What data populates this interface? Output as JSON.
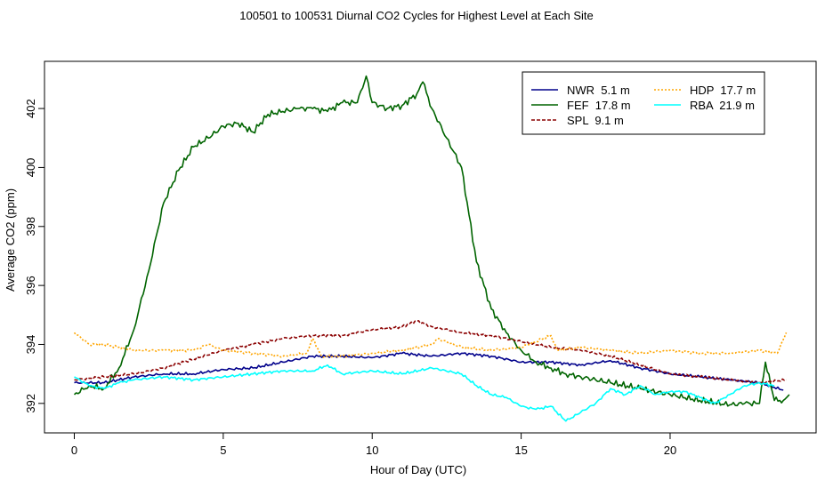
{
  "chart_data": {
    "type": "line",
    "title": "100501  to  100531 Diurnal CO2 Cycles for Highest Level at Each Site",
    "xlabel": "Hour of Day (UTC)",
    "ylabel": "Average CO2 (ppm)",
    "xlim": [
      -1,
      24.9
    ],
    "ylim": [
      391,
      403.6
    ],
    "x_ticks": [
      0,
      5,
      10,
      15,
      20
    ],
    "y_ticks": [
      392,
      394,
      396,
      398,
      400,
      402
    ],
    "grid": false,
    "legend_position": "top-right",
    "series": [
      {
        "name": "NWR  5.1 m",
        "color": "#00008B",
        "dash": "solid",
        "points": [
          [
            0,
            392.7
          ],
          [
            1,
            392.7
          ],
          [
            2,
            392.9
          ],
          [
            3,
            393.0
          ],
          [
            4,
            393.0
          ],
          [
            5,
            393.15
          ],
          [
            6,
            393.2
          ],
          [
            7,
            393.4
          ],
          [
            8,
            393.6
          ],
          [
            9,
            393.6
          ],
          [
            10,
            393.55
          ],
          [
            11,
            393.7
          ],
          [
            12,
            393.6
          ],
          [
            13,
            393.7
          ],
          [
            14,
            393.6
          ],
          [
            15,
            393.4
          ],
          [
            16,
            393.4
          ],
          [
            17,
            393.3
          ],
          [
            18,
            393.45
          ],
          [
            19,
            393.2
          ],
          [
            20,
            393.0
          ],
          [
            21,
            392.9
          ],
          [
            22,
            392.8
          ],
          [
            23,
            392.7
          ],
          [
            23.8,
            392.45
          ]
        ]
      },
      {
        "name": "FEF  17.8 m",
        "color": "#006400",
        "dash": "solid",
        "points": [
          [
            0,
            392.3
          ],
          [
            0.5,
            392.6
          ],
          [
            1,
            392.5
          ],
          [
            1.5,
            393.2
          ],
          [
            2,
            394.5
          ],
          [
            2.5,
            396.5
          ],
          [
            3,
            398.8
          ],
          [
            3.5,
            399.9
          ],
          [
            4,
            400.7
          ],
          [
            4.5,
            401.0
          ],
          [
            5,
            401.4
          ],
          [
            5.5,
            401.5
          ],
          [
            6,
            401.2
          ],
          [
            6.5,
            401.8
          ],
          [
            7,
            401.9
          ],
          [
            7.5,
            402.0
          ],
          [
            8,
            402.0
          ],
          [
            8.5,
            401.9
          ],
          [
            9,
            402.2
          ],
          [
            9.5,
            402.2
          ],
          [
            9.8,
            403.1
          ],
          [
            10,
            402.2
          ],
          [
            10.5,
            402.0
          ],
          [
            11,
            402.1
          ],
          [
            11.5,
            402.5
          ],
          [
            11.7,
            402.9
          ],
          [
            12,
            402.0
          ],
          [
            12.5,
            401.0
          ],
          [
            13,
            400.0
          ],
          [
            13.5,
            396.8
          ],
          [
            14,
            395.2
          ],
          [
            14.5,
            394.4
          ],
          [
            15,
            393.8
          ],
          [
            15.5,
            393.4
          ],
          [
            16,
            393.2
          ],
          [
            16.5,
            393.0
          ],
          [
            17,
            392.9
          ],
          [
            18,
            392.7
          ],
          [
            19,
            392.5
          ],
          [
            20,
            392.3
          ],
          [
            21,
            392.1
          ],
          [
            22,
            391.95
          ],
          [
            22.5,
            392.0
          ],
          [
            23,
            392.0
          ],
          [
            23.2,
            393.4
          ],
          [
            23.5,
            392.1
          ],
          [
            23.8,
            392.1
          ],
          [
            24,
            392.3
          ]
        ]
      },
      {
        "name": "SPL  9.1 m",
        "color": "#8B0000",
        "dash": "dashed",
        "points": [
          [
            0,
            392.8
          ],
          [
            1,
            392.9
          ],
          [
            2,
            393.0
          ],
          [
            3,
            393.2
          ],
          [
            4,
            393.5
          ],
          [
            5,
            393.8
          ],
          [
            6,
            394.0
          ],
          [
            7,
            394.2
          ],
          [
            8,
            394.3
          ],
          [
            9,
            394.3
          ],
          [
            10,
            394.5
          ],
          [
            11,
            394.6
          ],
          [
            11.5,
            394.8
          ],
          [
            12,
            394.6
          ],
          [
            13,
            394.4
          ],
          [
            14,
            394.3
          ],
          [
            15,
            394.1
          ],
          [
            16,
            393.9
          ],
          [
            17,
            393.8
          ],
          [
            18,
            393.6
          ],
          [
            19,
            393.3
          ],
          [
            20,
            393.0
          ],
          [
            21,
            392.9
          ],
          [
            22,
            392.8
          ],
          [
            23,
            392.7
          ],
          [
            23.9,
            392.8
          ]
        ]
      },
      {
        "name": "HDP  17.7 m",
        "color": "#FFA500",
        "dash": "dotted",
        "points": [
          [
            0,
            394.4
          ],
          [
            0.5,
            394.0
          ],
          [
            1,
            394.0
          ],
          [
            2,
            393.8
          ],
          [
            3,
            393.8
          ],
          [
            4,
            393.8
          ],
          [
            4.5,
            394.0
          ],
          [
            5,
            393.8
          ],
          [
            6,
            393.7
          ],
          [
            7,
            393.6
          ],
          [
            7.8,
            393.7
          ],
          [
            8,
            394.2
          ],
          [
            8.3,
            393.6
          ],
          [
            9,
            393.6
          ],
          [
            10,
            393.7
          ],
          [
            11,
            393.8
          ],
          [
            12,
            394.0
          ],
          [
            12.2,
            394.2
          ],
          [
            13,
            393.9
          ],
          [
            14,
            393.8
          ],
          [
            15,
            393.9
          ],
          [
            16,
            394.3
          ],
          [
            16.2,
            393.8
          ],
          [
            17,
            393.9
          ],
          [
            18,
            393.8
          ],
          [
            19,
            393.7
          ],
          [
            20,
            393.8
          ],
          [
            21,
            393.7
          ],
          [
            22,
            393.7
          ],
          [
            23,
            393.8
          ],
          [
            23.6,
            393.7
          ],
          [
            23.9,
            394.4
          ]
        ]
      },
      {
        "name": "RBA  21.9 m",
        "color": "#00FFFF",
        "dash": "solid",
        "points": [
          [
            0,
            392.9
          ],
          [
            0.5,
            392.6
          ],
          [
            1,
            392.5
          ],
          [
            1.5,
            392.7
          ],
          [
            2,
            392.8
          ],
          [
            3,
            392.9
          ],
          [
            4,
            392.8
          ],
          [
            5,
            392.9
          ],
          [
            6,
            393.0
          ],
          [
            7,
            393.1
          ],
          [
            8,
            393.1
          ],
          [
            8.5,
            393.3
          ],
          [
            9,
            393.0
          ],
          [
            10,
            393.1
          ],
          [
            11,
            393.0
          ],
          [
            12,
            393.2
          ],
          [
            13,
            393.0
          ],
          [
            13.5,
            392.6
          ],
          [
            14,
            392.3
          ],
          [
            14.5,
            392.2
          ],
          [
            15,
            391.9
          ],
          [
            15.5,
            391.8
          ],
          [
            16,
            391.9
          ],
          [
            16.5,
            391.4
          ],
          [
            17,
            391.7
          ],
          [
            17.5,
            392.0
          ],
          [
            18,
            392.5
          ],
          [
            18.5,
            392.3
          ],
          [
            19,
            392.6
          ],
          [
            19.5,
            392.3
          ],
          [
            20,
            392.4
          ],
          [
            20.5,
            392.4
          ],
          [
            21,
            392.2
          ],
          [
            21.5,
            392.0
          ],
          [
            22,
            392.3
          ],
          [
            22.5,
            392.6
          ],
          [
            23,
            392.7
          ],
          [
            23.5,
            392.6
          ]
        ]
      }
    ]
  }
}
